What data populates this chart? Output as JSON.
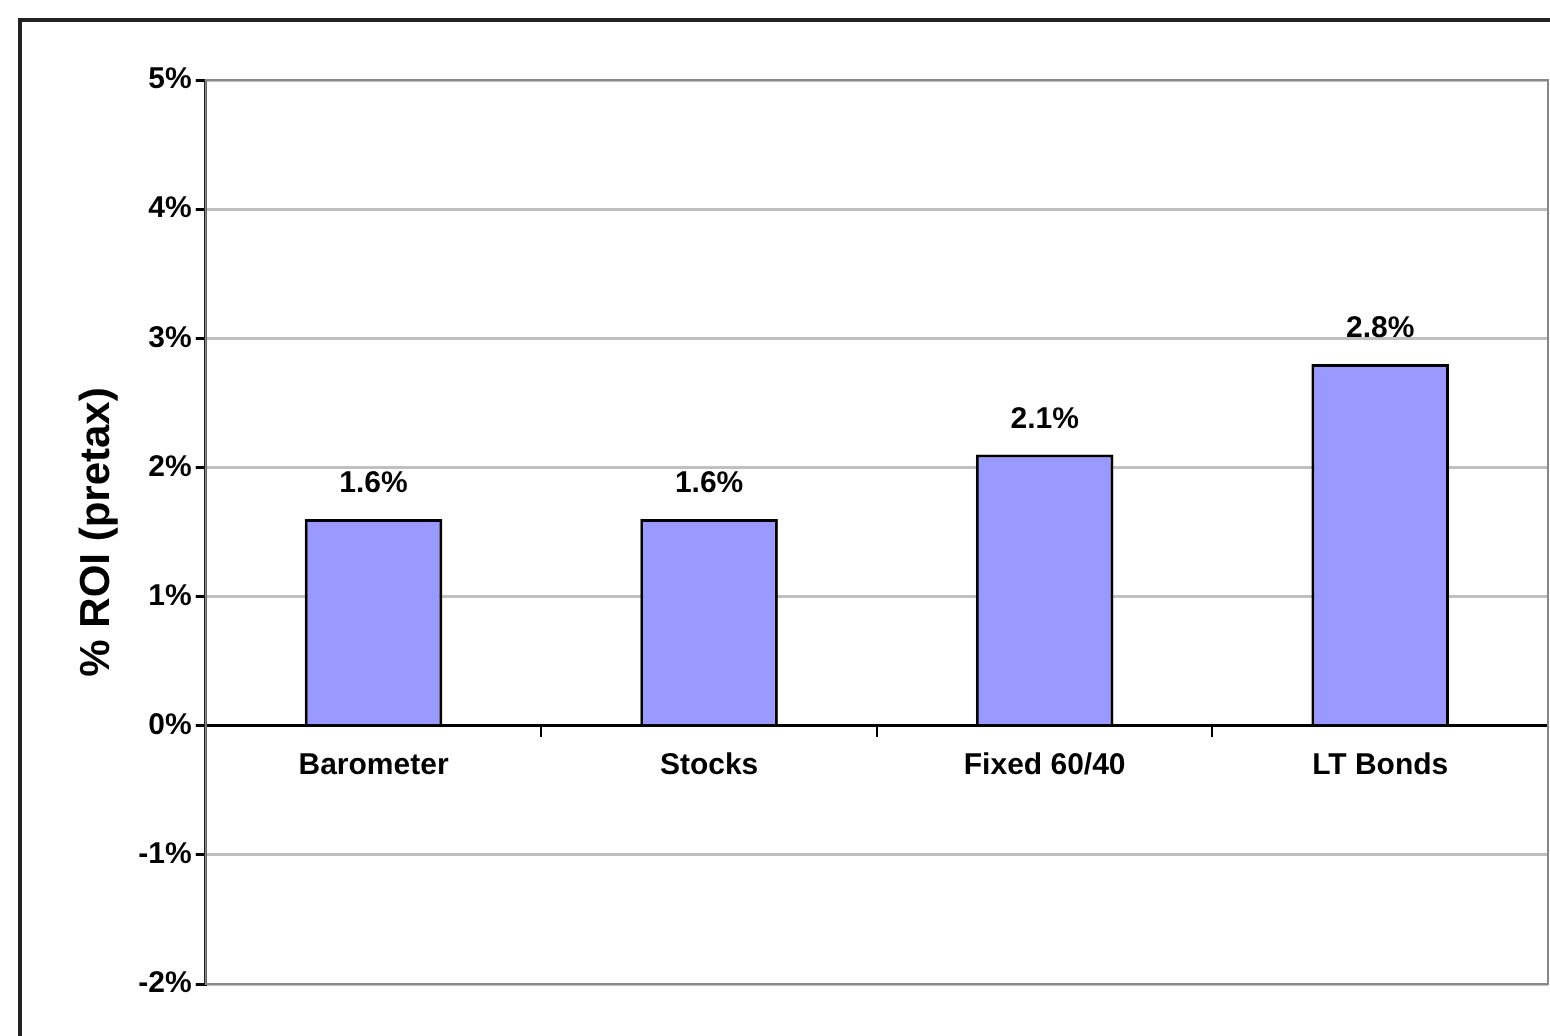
{
  "chart_data": {
    "type": "bar",
    "ylabel": "% ROI (pretax)",
    "categories": [
      "Barometer",
      "Stocks",
      "Fixed 60/40",
      "LT Bonds"
    ],
    "values": [
      1.6,
      1.6,
      2.1,
      2.8
    ],
    "value_labels": [
      "1.6%",
      "1.6%",
      "2.1%",
      "2.8%"
    ],
    "color": "#9999ff",
    "ylim": [
      -2,
      5
    ],
    "yticks": [
      {
        "value": -2,
        "label": "-2%"
      },
      {
        "value": -1,
        "label": "-1%"
      },
      {
        "value": 0,
        "label": "0%"
      },
      {
        "value": 1,
        "label": "1%"
      },
      {
        "value": 2,
        "label": "2%"
      },
      {
        "value": 3,
        "label": "3%"
      },
      {
        "value": 4,
        "label": "4%"
      },
      {
        "value": 5,
        "label": "5%"
      }
    ],
    "grid": "y"
  }
}
